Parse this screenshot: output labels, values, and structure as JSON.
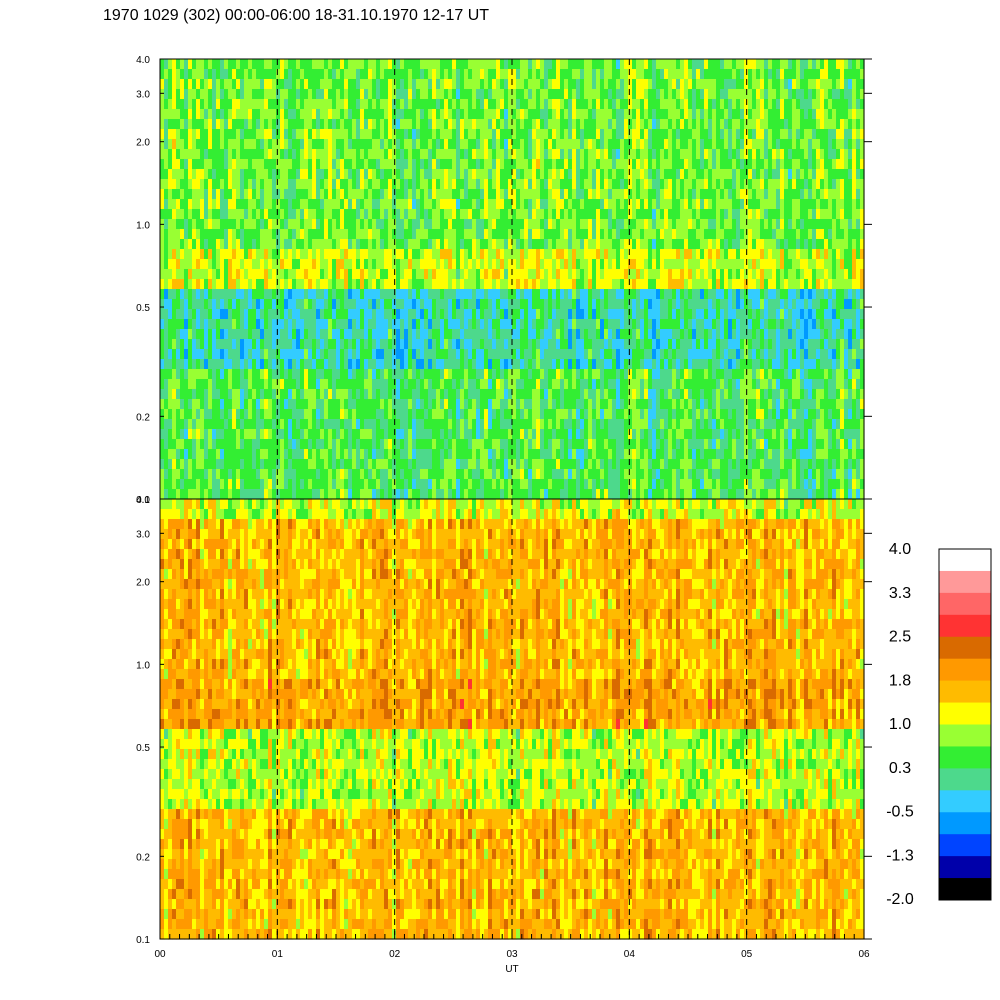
{
  "header": {
    "title": "1970 1029 (302) 00:00-06:00 18-31.10.1970  12-17 UT"
  },
  "chart_data": {
    "type": "heatmap",
    "xlabel": "UT",
    "x_ticks": [
      "00",
      "01",
      "02",
      "03",
      "04",
      "05",
      "06"
    ],
    "xlim": [
      0,
      6
    ],
    "panels": [
      {
        "name": "upper",
        "y_scale": "log",
        "ylim": [
          0.1,
          4.0
        ],
        "y_ticks": [
          "0.1",
          "0.2",
          "0.5",
          "1.0",
          "2.0",
          "3.0",
          "4.0"
        ],
        "typical_level_by_band": [
          {
            "band": [
              0.1,
              0.3
            ],
            "level": 0.4
          },
          {
            "band": [
              0.3,
              0.6
            ],
            "level": 0.0
          },
          {
            "band": [
              0.6,
              0.8
            ],
            "level": 1.0
          },
          {
            "band": [
              0.8,
              4.0
            ],
            "level": 0.6
          }
        ]
      },
      {
        "name": "lower",
        "y_scale": "log",
        "ylim": [
          0.1,
          4.0
        ],
        "y_ticks": [
          "0.1",
          "0.2",
          "0.5",
          "1.0",
          "2.0",
          "3.0",
          "4.0"
        ],
        "typical_level_by_band": [
          {
            "band": [
              0.1,
              0.3
            ],
            "level": 1.6
          },
          {
            "band": [
              0.3,
              0.6
            ],
            "level": 0.9
          },
          {
            "band": [
              0.6,
              0.85
            ],
            "level": 1.8
          },
          {
            "band": [
              0.85,
              3.3
            ],
            "level": 1.6
          },
          {
            "band": [
              3.3,
              4.0
            ],
            "level": 1.0
          }
        ]
      }
    ],
    "vertical_dashed_lines_at": [
      1,
      2,
      3,
      4,
      5
    ],
    "colorbar": {
      "labels": [
        "4.0",
        "3.3",
        "2.5",
        "1.8",
        "1.0",
        "0.3",
        "-0.5",
        "-1.3",
        "-2.0"
      ],
      "colors_top_to_bottom": [
        "#ffffff",
        "#ff9999",
        "#ff6666",
        "#ff3333",
        "#d96a00",
        "#ff9900",
        "#ffbb00",
        "#ffff00",
        "#99ff33",
        "#33ee33",
        "#4dd98c",
        "#33ccff",
        "#0099ff",
        "#0044ff",
        "#0000aa",
        "#000000"
      ],
      "range": [
        -2.0,
        4.0
      ]
    }
  }
}
